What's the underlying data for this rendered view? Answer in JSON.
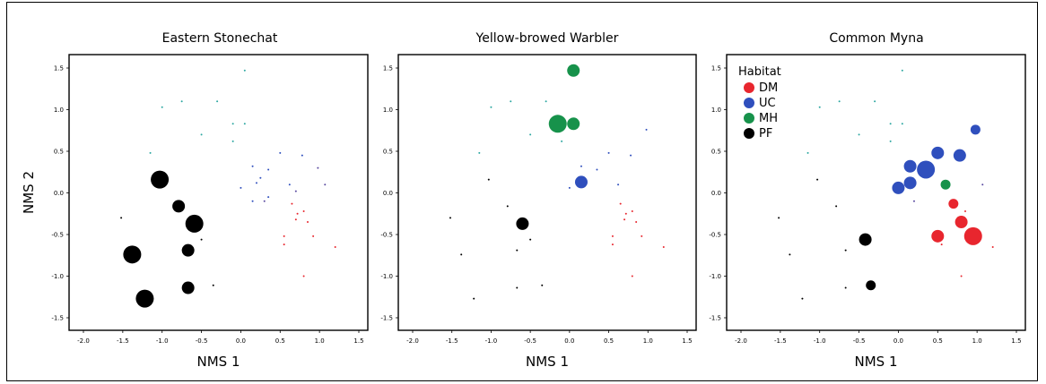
{
  "colors": {
    "DM": "#e8262e",
    "UC": "#2f4fbd",
    "MH": "#17924b",
    "PF": "#000000",
    "point_small": "#2ca7a1"
  },
  "chart_data": [
    {
      "type": "scatter",
      "title": "Eastern Stonechat",
      "xlabel": "NMS 1",
      "ylabel": "NMS 2",
      "xlim": [
        -2.0,
        1.5
      ],
      "ylim": [
        -1.5,
        1.5
      ],
      "xticks": [
        "-2.0",
        "-1.5",
        "-1.0",
        "-0.5",
        "0.0",
        "0.5",
        "1.0",
        "1.5"
      ],
      "yticks": [
        "1.5",
        "1.0",
        "0.5",
        "0.0",
        "-0.5",
        "-1.0",
        "-1.5"
      ],
      "grid": false,
      "series": [
        {
          "group": "PF",
          "points": [
            [
              -1.03,
              0.16,
              3
            ],
            [
              -0.79,
              -0.16,
              2
            ],
            [
              -0.59,
              -0.37,
              3
            ],
            [
              -1.38,
              -0.74,
              3
            ],
            [
              -0.67,
              -0.69,
              2
            ],
            [
              -0.67,
              -1.14,
              2
            ],
            [
              -1.22,
              -1.27,
              3
            ],
            [
              -1.52,
              -0.3,
              0
            ],
            [
              -0.5,
              -0.56,
              0
            ],
            [
              -0.35,
              -1.11,
              0
            ]
          ]
        },
        {
          "group": "DM",
          "points": [
            [
              0.65,
              -0.13,
              0
            ],
            [
              0.72,
              -0.25,
              0
            ],
            [
              0.85,
              -0.35,
              0
            ],
            [
              0.55,
              -0.52,
              0
            ],
            [
              0.92,
              -0.52,
              0
            ],
            [
              1.2,
              -0.65,
              0
            ],
            [
              0.55,
              -0.62,
              0
            ],
            [
              0.8,
              -1.0,
              0
            ],
            [
              0.7,
              -0.32,
              0
            ],
            [
              0.8,
              -0.22,
              0
            ]
          ]
        },
        {
          "group": "UC",
          "points": [
            [
              0.15,
              0.32,
              0
            ],
            [
              0.5,
              0.48,
              0
            ],
            [
              0.78,
              0.45,
              0
            ],
            [
              0.35,
              0.28,
              0
            ],
            [
              0.0,
              0.06,
              0
            ],
            [
              0.2,
              0.12,
              0
            ],
            [
              0.62,
              0.1,
              0
            ],
            [
              0.15,
              -0.1,
              0
            ],
            [
              0.35,
              -0.05,
              0
            ],
            [
              0.25,
              0.18,
              0
            ]
          ]
        },
        {
          "group": "MH",
          "points": [
            [
              0.05,
              1.47,
              0
            ],
            [
              -0.75,
              1.1,
              0
            ],
            [
              -1.0,
              1.03,
              0
            ],
            [
              -0.3,
              1.1,
              0
            ],
            [
              -0.5,
              0.7,
              0
            ],
            [
              -0.1,
              0.83,
              0
            ],
            [
              0.05,
              0.83,
              0
            ],
            [
              -0.1,
              0.62,
              0
            ],
            [
              -1.15,
              0.48,
              0
            ]
          ]
        },
        {
          "group": "ZZ",
          "points": [
            [
              1.07,
              0.1,
              0
            ],
            [
              0.3,
              -0.1,
              0
            ],
            [
              0.7,
              0.02,
              0
            ],
            [
              0.98,
              0.3,
              0
            ]
          ]
        }
      ]
    },
    {
      "type": "scatter",
      "title": "Yellow-browed Warbler",
      "xlabel": "NMS 1",
      "ylabel": "",
      "xlim": [
        -2.0,
        1.5
      ],
      "ylim": [
        -1.5,
        1.5
      ],
      "xticks": [
        "-2.0",
        "-1.5",
        "-1.0",
        "-0.5",
        "0.0",
        "0.5",
        "1.0",
        "1.5"
      ],
      "yticks": [
        "1.5",
        "1.0",
        "0.5",
        "0.0",
        "-0.5",
        "-1.0",
        "-1.5"
      ],
      "grid": false,
      "series": [
        {
          "group": "MH",
          "points": [
            [
              0.05,
              1.47,
              2
            ],
            [
              -0.15,
              0.83,
              3
            ],
            [
              0.05,
              0.83,
              2
            ],
            [
              -0.75,
              1.1,
              0
            ],
            [
              -1.0,
              1.03,
              0
            ],
            [
              -0.3,
              1.1,
              0
            ],
            [
              -0.5,
              0.7,
              0
            ],
            [
              -0.1,
              0.62,
              0
            ],
            [
              -1.15,
              0.48,
              0
            ]
          ]
        },
        {
          "group": "UC",
          "points": [
            [
              0.15,
              0.13,
              2
            ],
            [
              0.15,
              0.32,
              0
            ],
            [
              0.5,
              0.48,
              0
            ],
            [
              0.78,
              0.45,
              0
            ],
            [
              0.35,
              0.28,
              0
            ],
            [
              0.0,
              0.06,
              0
            ],
            [
              0.62,
              0.1,
              0
            ],
            [
              0.98,
              0.76,
              0
            ]
          ]
        },
        {
          "group": "PF",
          "points": [
            [
              -0.6,
              -0.37,
              2
            ],
            [
              -1.03,
              0.16,
              0
            ],
            [
              -0.79,
              -0.16,
              0
            ],
            [
              -1.52,
              -0.3,
              0
            ],
            [
              -1.38,
              -0.74,
              0
            ],
            [
              -0.67,
              -0.69,
              0
            ],
            [
              -0.5,
              -0.56,
              0
            ],
            [
              -0.67,
              -1.14,
              0
            ],
            [
              -0.35,
              -1.11,
              0
            ],
            [
              -1.22,
              -1.27,
              0
            ]
          ]
        },
        {
          "group": "DM",
          "points": [
            [
              0.65,
              -0.13,
              0
            ],
            [
              0.72,
              -0.25,
              0
            ],
            [
              0.85,
              -0.35,
              0
            ],
            [
              0.55,
              -0.52,
              0
            ],
            [
              0.92,
              -0.52,
              0
            ],
            [
              1.2,
              -0.65,
              0
            ],
            [
              0.55,
              -0.62,
              0
            ],
            [
              0.8,
              -1.0,
              0
            ],
            [
              0.7,
              -0.32,
              0
            ],
            [
              0.8,
              -0.22,
              0
            ]
          ]
        }
      ]
    },
    {
      "type": "scatter",
      "title": "Common Myna",
      "xlabel": "NMS 1",
      "ylabel": "",
      "xlim": [
        -2.0,
        1.5
      ],
      "ylim": [
        -1.5,
        1.5
      ],
      "xticks": [
        "-2.0",
        "-1.5",
        "-1.0",
        "-0.5",
        "0.0",
        "0.5",
        "1.0",
        "1.5"
      ],
      "yticks": [
        "1.5",
        "1.0",
        "0.5",
        "0.0",
        "-0.5",
        "-1.0",
        "-1.5"
      ],
      "grid": false,
      "legend": {
        "title": "Habitat",
        "placement": "top-left",
        "entries": [
          "DM",
          "UC",
          "MH",
          "PF"
        ]
      },
      "series": [
        {
          "group": "UC",
          "points": [
            [
              0.35,
              0.28,
              3
            ],
            [
              0.15,
              0.32,
              2
            ],
            [
              0.5,
              0.48,
              2
            ],
            [
              0.78,
              0.45,
              2
            ],
            [
              0.15,
              0.12,
              2
            ],
            [
              0.0,
              0.06,
              2
            ],
            [
              0.98,
              0.76,
              1
            ]
          ]
        },
        {
          "group": "MH",
          "points": [
            [
              0.6,
              0.1,
              1
            ],
            [
              0.05,
              1.47,
              0
            ],
            [
              -0.75,
              1.1,
              0
            ],
            [
              -1.0,
              1.03,
              0
            ],
            [
              -0.3,
              1.1,
              0
            ],
            [
              -0.5,
              0.7,
              0
            ],
            [
              -0.1,
              0.83,
              0
            ],
            [
              0.05,
              0.83,
              0
            ],
            [
              -0.1,
              0.62,
              0
            ],
            [
              -1.15,
              0.48,
              0
            ]
          ]
        },
        {
          "group": "DM",
          "points": [
            [
              0.95,
              -0.52,
              3
            ],
            [
              0.8,
              -0.35,
              2
            ],
            [
              0.7,
              -0.13,
              1
            ],
            [
              0.5,
              -0.52,
              2
            ],
            [
              0.55,
              -0.62,
              0
            ],
            [
              1.2,
              -0.65,
              0
            ],
            [
              0.8,
              -1.0,
              0
            ],
            [
              0.85,
              -0.22,
              0
            ]
          ]
        },
        {
          "group": "PF",
          "points": [
            [
              -0.42,
              -0.56,
              2
            ],
            [
              -0.35,
              -1.11,
              1
            ],
            [
              -1.03,
              0.16,
              0
            ],
            [
              -0.79,
              -0.16,
              0
            ],
            [
              -1.52,
              -0.3,
              0
            ],
            [
              -1.38,
              -0.74,
              0
            ],
            [
              -0.67,
              -0.69,
              0
            ],
            [
              -0.67,
              -1.14,
              0
            ],
            [
              -1.22,
              -1.27,
              0
            ]
          ]
        },
        {
          "group": "ZZ",
          "points": [
            [
              1.07,
              0.1,
              0
            ],
            [
              0.2,
              -0.1,
              0
            ]
          ]
        }
      ]
    }
  ]
}
